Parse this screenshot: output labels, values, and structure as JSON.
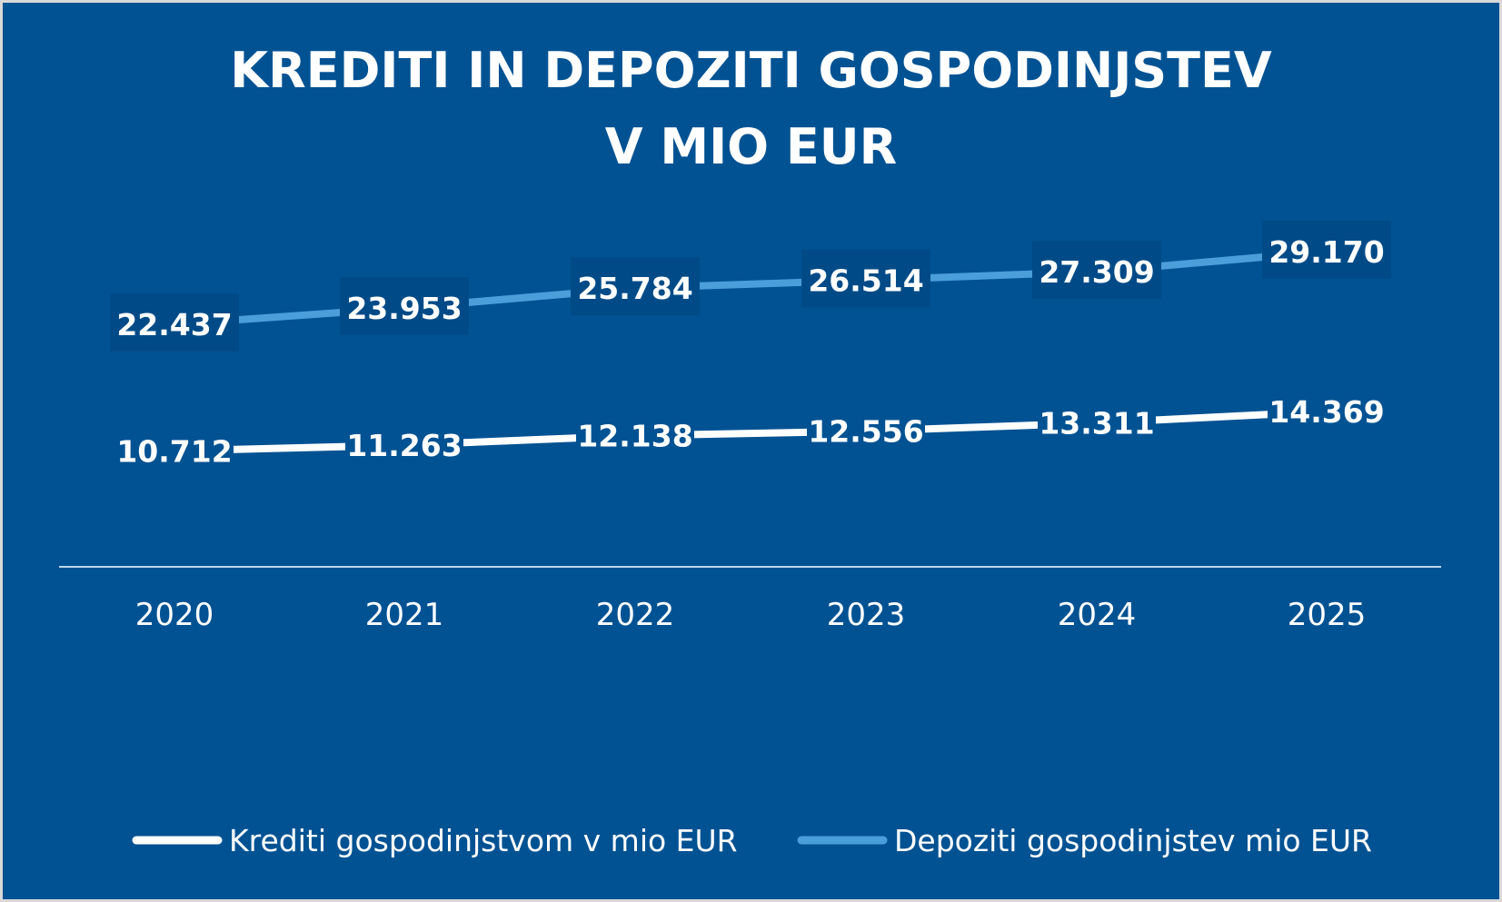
{
  "chart_data": {
    "type": "line",
    "title": [
      "KREDITI IN DEPOZITI GOSPODINJSTEV",
      "V MIO EUR"
    ],
    "categories": [
      "2020",
      "2021",
      "2022",
      "2023",
      "2024",
      "2025"
    ],
    "series": [
      {
        "name": "Krediti gospodinjstvom v mio EUR",
        "color": "#ffffff",
        "values": [
          10712,
          11263,
          12138,
          12556,
          13311,
          14369
        ],
        "labels": [
          "10.712",
          "11.263",
          "12.138",
          "12.556",
          "13.311",
          "14.369"
        ]
      },
      {
        "name": "Depoziti gospodinjstev mio EUR",
        "color": "#4a9fdb",
        "values": [
          22437,
          23953,
          25784,
          26514,
          27309,
          29170
        ],
        "labels": [
          "22.437",
          "23.953",
          "25.784",
          "26.514",
          "27.309",
          "29.170"
        ]
      }
    ],
    "ylim": [
      0,
      52000
    ],
    "grid": false,
    "legend": "bottom",
    "background": "#005293",
    "label_box_color": "#004b87"
  }
}
